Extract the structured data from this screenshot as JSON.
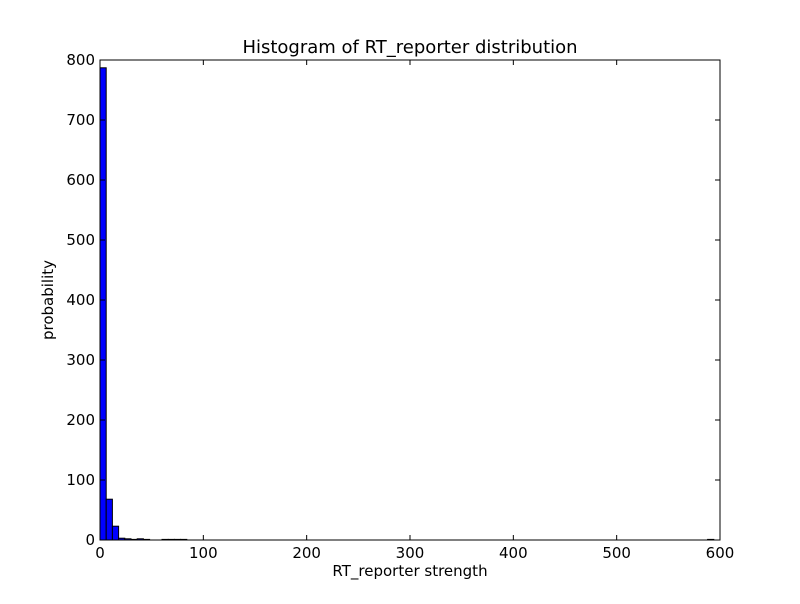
{
  "chart_data": {
    "type": "bar",
    "subtype": "histogram",
    "title": "Histogram of RT_reporter  distribution",
    "xlabel": "RT_reporter  strength",
    "ylabel": "probability",
    "xlim": [
      0,
      600
    ],
    "ylim": [
      0,
      800
    ],
    "xticks": [
      0,
      100,
      200,
      300,
      400,
      500,
      600
    ],
    "yticks": [
      0,
      100,
      200,
      300,
      400,
      500,
      600,
      700,
      800
    ],
    "grid": false,
    "legend": "none",
    "bar_color": "#0000ff",
    "edge_color": "#000000",
    "bins": [
      {
        "start": 0,
        "end": 6,
        "count": 787
      },
      {
        "start": 6,
        "end": 12,
        "count": 68
      },
      {
        "start": 12,
        "end": 18,
        "count": 23
      },
      {
        "start": 18,
        "end": 24,
        "count": 3
      },
      {
        "start": 24,
        "end": 30,
        "count": 2
      },
      {
        "start": 30,
        "end": 36,
        "count": 1
      },
      {
        "start": 36,
        "end": 42,
        "count": 2
      },
      {
        "start": 42,
        "end": 48,
        "count": 1
      },
      {
        "start": 60,
        "end": 66,
        "count": 1
      },
      {
        "start": 66,
        "end": 72,
        "count": 1
      },
      {
        "start": 72,
        "end": 78,
        "count": 1
      },
      {
        "start": 78,
        "end": 84,
        "count": 1
      },
      {
        "start": 588,
        "end": 594,
        "count": 1
      }
    ]
  }
}
